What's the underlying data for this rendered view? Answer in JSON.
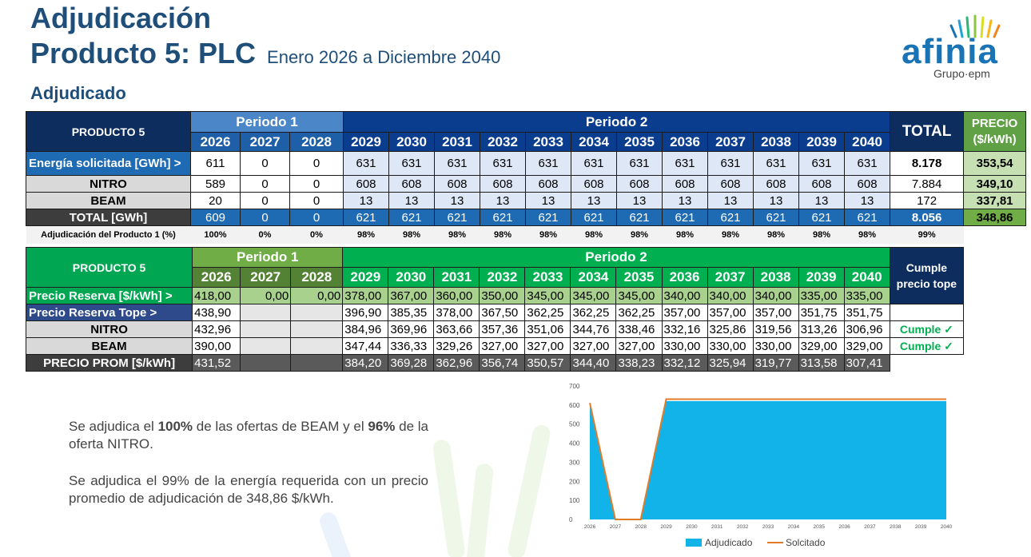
{
  "header": {
    "title_line1": "Adjudicación",
    "title_line2": "Producto 5: PLC",
    "subtitle": "Enero 2026 a Diciembre 2040",
    "section": "Adjudicado"
  },
  "logo": {
    "name": "afinia",
    "group": "Grupo·epm"
  },
  "table1": {
    "product_label": "PRODUCTO 5",
    "periodo1_label": "Periodo 1",
    "periodo2_label": "Periodo 2",
    "total_label": "TOTAL",
    "precio_label": "PRECIO ($/kWh)",
    "years": [
      "2026",
      "2027",
      "2028",
      "2029",
      "2030",
      "2031",
      "2032",
      "2033",
      "2034",
      "2035",
      "2036",
      "2037",
      "2038",
      "2039",
      "2040"
    ],
    "rows": [
      {
        "label": "Energía solicitada [GWh] >",
        "values": [
          "611",
          "0",
          "0",
          "631",
          "631",
          "631",
          "631",
          "631",
          "631",
          "631",
          "631",
          "631",
          "631",
          "631",
          "631"
        ],
        "total": "8.178",
        "precio": "353,54"
      },
      {
        "label": "NITRO",
        "values": [
          "589",
          "0",
          "0",
          "608",
          "608",
          "608",
          "608",
          "608",
          "608",
          "608",
          "608",
          "608",
          "608",
          "608",
          "608"
        ],
        "total": "7.884",
        "precio": "349,10"
      },
      {
        "label": "BEAM",
        "values": [
          "20",
          "0",
          "0",
          "13",
          "13",
          "13",
          "13",
          "13",
          "13",
          "13",
          "13",
          "13",
          "13",
          "13",
          "13"
        ],
        "total": "172",
        "precio": "337,81"
      },
      {
        "label": "TOTAL [GWh]",
        "values": [
          "609",
          "0",
          "0",
          "621",
          "621",
          "621",
          "621",
          "621",
          "621",
          "621",
          "621",
          "621",
          "621",
          "621",
          "621"
        ],
        "total": "8.056",
        "precio": "348,86"
      }
    ],
    "pct_row": {
      "label": "Adjudicación del Producto 1 (%)",
      "values": [
        "100%",
        "0%",
        "0%",
        "98%",
        "98%",
        "98%",
        "98%",
        "98%",
        "98%",
        "98%",
        "98%",
        "98%",
        "98%",
        "98%",
        "98%"
      ],
      "total": "99%"
    }
  },
  "table2": {
    "product_label": "PRODUCTO 5",
    "periodo1_label": "Periodo 1",
    "periodo2_label": "Periodo 2",
    "cumple_label": "Cumple precio tope",
    "rows": [
      {
        "label": "Precio Reserva [$/kWh] >",
        "values": [
          "418,00",
          "0,00",
          "0,00",
          "378,00",
          "367,00",
          "360,00",
          "350,00",
          "345,00",
          "345,00",
          "345,00",
          "340,00",
          "340,00",
          "340,00",
          "335,00",
          "335,00"
        ],
        "cumple": ""
      },
      {
        "label": "Precio Reserva Tope >",
        "values": [
          "438,90",
          "",
          "",
          "396,90",
          "385,35",
          "378,00",
          "367,50",
          "362,25",
          "362,25",
          "362,25",
          "357,00",
          "357,00",
          "357,00",
          "351,75",
          "351,75"
        ],
        "cumple": ""
      },
      {
        "label": "NITRO",
        "values": [
          "432,96",
          "",
          "",
          "384,96",
          "369,96",
          "363,66",
          "357,36",
          "351,06",
          "344,76",
          "338,46",
          "332,16",
          "325,86",
          "319,56",
          "313,26",
          "306,96"
        ],
        "cumple": "Cumple ✓"
      },
      {
        "label": "BEAM",
        "values": [
          "390,00",
          "",
          "",
          "347,44",
          "336,33",
          "329,26",
          "327,00",
          "327,00",
          "327,00",
          "327,00",
          "330,00",
          "330,00",
          "330,00",
          "329,00",
          "329,00"
        ],
        "cumple": "Cumple ✓"
      },
      {
        "label": "PRECIO PROM [$/kWh]",
        "values": [
          "431,52",
          "",
          "",
          "384,20",
          "369,28",
          "362,96",
          "356,74",
          "350,57",
          "344,40",
          "338,23",
          "332,12",
          "325,94",
          "319,77",
          "313,58",
          "307,41"
        ],
        "cumple": ""
      }
    ]
  },
  "notes": {
    "n1_a": "Se adjudica el ",
    "n1_b": "100%",
    "n1_c": " de las ofertas de BEAM y el ",
    "n1_d": "96%",
    "n1_e": " de la oferta NITRO.",
    "n2": "Se adjudica el 99% de la energía requerida con un precio promedio de adjudicación de 348,86 $/kWh."
  },
  "chart_data": {
    "type": "area",
    "x": [
      "2026",
      "2027",
      "2028",
      "2029",
      "2030",
      "2031",
      "2032",
      "2033",
      "2034",
      "2035",
      "2036",
      "2037",
      "2038",
      "2039",
      "2040"
    ],
    "series": [
      {
        "name": "Adjudicado",
        "type": "area",
        "color": "#12b3e8",
        "values": [
          609,
          0,
          0,
          621,
          621,
          621,
          621,
          621,
          621,
          621,
          621,
          621,
          621,
          621,
          621
        ]
      },
      {
        "name": "Solcitado",
        "type": "line",
        "color": "#e07b2a",
        "values": [
          611,
          0,
          0,
          631,
          631,
          631,
          631,
          631,
          631,
          631,
          631,
          631,
          631,
          631,
          631
        ]
      }
    ],
    "ylim": [
      0,
      700
    ],
    "yticks": [
      "0",
      "100",
      "200",
      "300",
      "400",
      "500",
      "600",
      "700"
    ],
    "legend": "bottom"
  }
}
